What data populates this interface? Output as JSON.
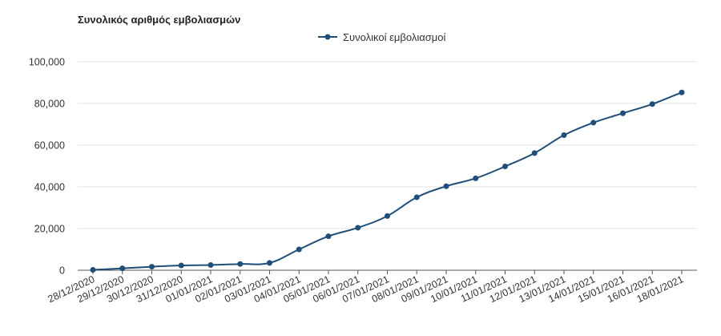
{
  "chart_data": {
    "type": "line",
    "title": "Συνολικός αριθμός εμβολιασμών",
    "legend_position": "top-center",
    "grid": true,
    "ylim": [
      0,
      100000
    ],
    "yticks": [
      "0",
      "20,000",
      "40,000",
      "60,000",
      "80,000",
      "100,000"
    ],
    "ytick_values": [
      0,
      20000,
      40000,
      60000,
      80000,
      100000
    ],
    "categories": [
      "28/12/2020",
      "29/12/2020",
      "30/12/2020",
      "31/12/2020",
      "01/01/2021",
      "02/01/2021",
      "03/01/2021",
      "04/01/2021",
      "05/01/2021",
      "06/01/2021",
      "07/01/2021",
      "08/01/2021",
      "09/01/2021",
      "10/01/2021",
      "11/01/2021",
      "12/01/2021",
      "13/01/2021",
      "14/01/2021",
      "15/01/2021",
      "16/01/2021",
      "18/01/2021"
    ],
    "series": [
      {
        "name": "Συνολικοί εμβολιασμοί",
        "color": "#1f4e79",
        "values": [
          200,
          900,
          1700,
          2300,
          2500,
          3000,
          3500,
          10000,
          16300,
          20400,
          26000,
          35000,
          40300,
          44100,
          49800,
          56200,
          64800,
          70800,
          75300,
          79700,
          85300
        ]
      }
    ]
  }
}
